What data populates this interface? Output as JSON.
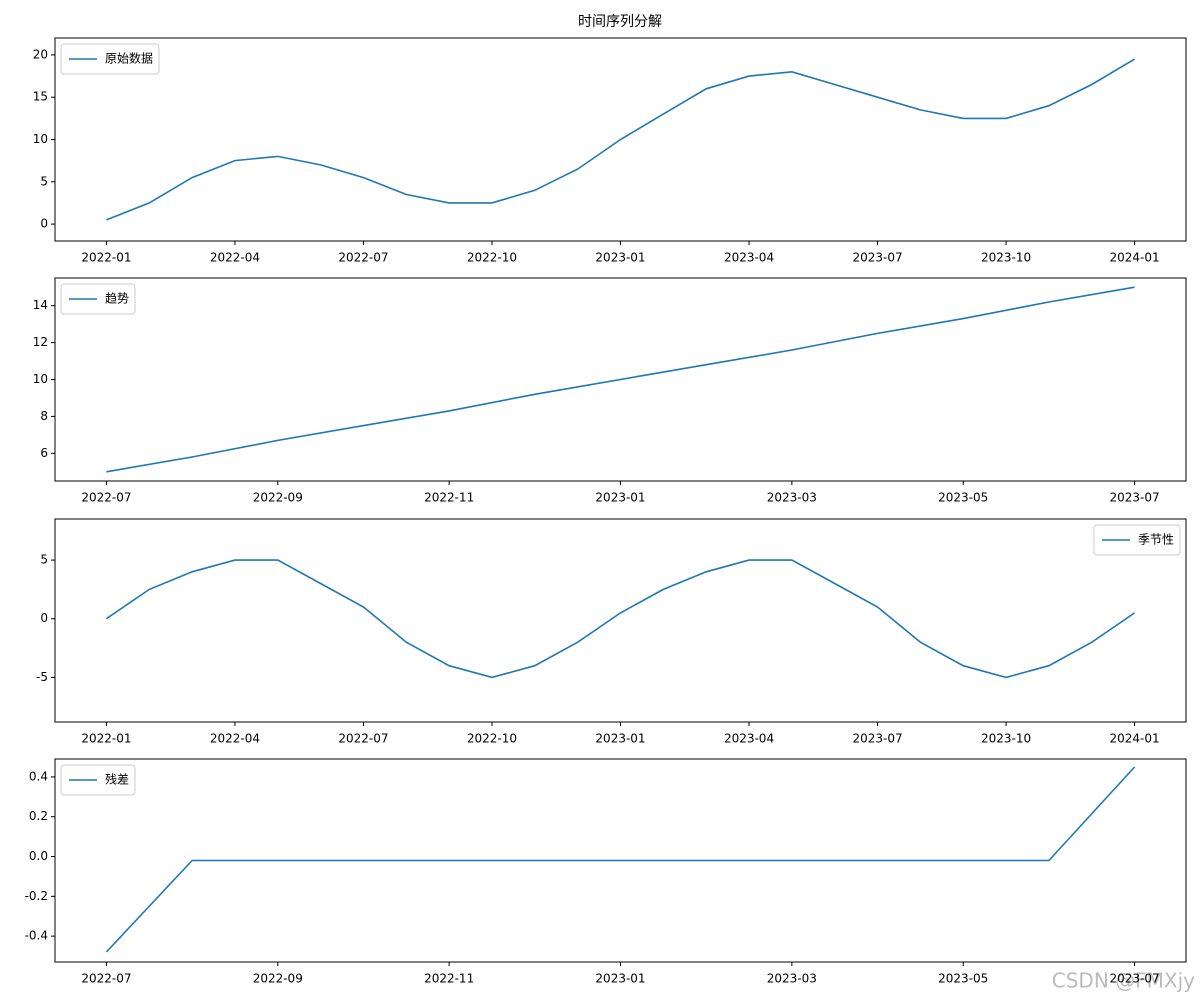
{
  "title": "时间序列分解",
  "watermark": "CSDN @FMXjy",
  "chart_data": [
    {
      "type": "line",
      "legend": "upper left",
      "x": [
        "2022-01",
        "2022-02",
        "2022-03",
        "2022-04",
        "2022-05",
        "2022-06",
        "2022-07",
        "2022-08",
        "2022-09",
        "2022-10",
        "2022-11",
        "2022-12",
        "2023-01",
        "2023-02",
        "2023-03",
        "2023-04",
        "2023-05",
        "2023-06",
        "2023-07",
        "2023-08",
        "2023-09",
        "2023-10",
        "2023-11",
        "2023-12",
        "2024-01"
      ],
      "series": [
        {
          "name": "原始数据",
          "color": "#1f77b4",
          "values": [
            0.5,
            2.5,
            5.5,
            7.5,
            8,
            7,
            5.5,
            3.5,
            2.5,
            2.5,
            4,
            6.5,
            10,
            13,
            16,
            17.5,
            18,
            16.5,
            15,
            13.5,
            12.5,
            12.5,
            14,
            16.5,
            19.5
          ]
        }
      ],
      "ylim": [
        -2,
        22
      ],
      "yticks": [
        0,
        5,
        10,
        15,
        20
      ],
      "xticks": [
        "2022-01",
        "2022-04",
        "2022-07",
        "2022-10",
        "2023-01",
        "2023-04",
        "2023-07",
        "2023-10",
        "2024-01"
      ]
    },
    {
      "type": "line",
      "legend": "upper left",
      "x": [
        "2022-07",
        "2022-08",
        "2022-09",
        "2022-10",
        "2022-11",
        "2022-12",
        "2023-01",
        "2023-02",
        "2023-03",
        "2023-04",
        "2023-05",
        "2023-06",
        "2023-07"
      ],
      "series": [
        {
          "name": "趋势",
          "color": "#1f77b4",
          "values": [
            5.0,
            5.8,
            6.7,
            7.5,
            8.3,
            9.2,
            10.0,
            10.8,
            11.6,
            12.5,
            13.3,
            14.2,
            15.0
          ]
        }
      ],
      "ylim": [
        4.5,
        15.5
      ],
      "yticks": [
        6,
        8,
        10,
        12,
        14
      ],
      "xticks": [
        "2022-07",
        "2022-09",
        "2022-11",
        "2023-01",
        "2023-03",
        "2023-05",
        "2023-07"
      ]
    },
    {
      "type": "line",
      "legend": "upper right",
      "x": [
        "2022-01",
        "2022-02",
        "2022-03",
        "2022-04",
        "2022-05",
        "2022-06",
        "2022-07",
        "2022-08",
        "2022-09",
        "2022-10",
        "2022-11",
        "2022-12",
        "2023-01",
        "2023-02",
        "2023-03",
        "2023-04",
        "2023-05",
        "2023-06",
        "2023-07",
        "2023-08",
        "2023-09",
        "2023-10",
        "2023-11",
        "2023-12",
        "2024-01"
      ],
      "series": [
        {
          "name": "季节性",
          "color": "#1f77b4",
          "values": [
            0,
            2.5,
            4,
            5,
            5,
            3,
            1,
            -2,
            -4,
            -5,
            -4,
            -2,
            0.5,
            2.5,
            4,
            5,
            5,
            3,
            1,
            -2,
            -4,
            -5,
            -4,
            -2,
            0.5
          ]
        }
      ],
      "ylim": [
        -8.8,
        8.5
      ],
      "yticks": [
        -5,
        0,
        5
      ],
      "xticks": [
        "2022-01",
        "2022-04",
        "2022-07",
        "2022-10",
        "2023-01",
        "2023-04",
        "2023-07",
        "2023-10",
        "2024-01"
      ]
    },
    {
      "type": "line",
      "legend": "upper left",
      "x": [
        "2022-07",
        "2022-08",
        "2022-09",
        "2022-10",
        "2022-11",
        "2022-12",
        "2023-01",
        "2023-02",
        "2023-03",
        "2023-04",
        "2023-05",
        "2023-06",
        "2023-07"
      ],
      "series": [
        {
          "name": "残差",
          "color": "#1f77b4",
          "values": [
            -0.48,
            -0.02,
            -0.02,
            -0.02,
            -0.02,
            -0.02,
            -0.02,
            -0.02,
            -0.02,
            -0.02,
            -0.02,
            -0.02,
            0.45
          ]
        }
      ],
      "ylim": [
        -0.53,
        0.49
      ],
      "yticks": [
        -0.4,
        -0.2,
        {
          "value": 0,
          "label": "0.0"
        },
        0.2,
        0.4
      ],
      "xticks": [
        "2022-07",
        "2022-09",
        "2022-11",
        "2023-01",
        "2023-03",
        "2023-05",
        "2023-07"
      ]
    }
  ]
}
